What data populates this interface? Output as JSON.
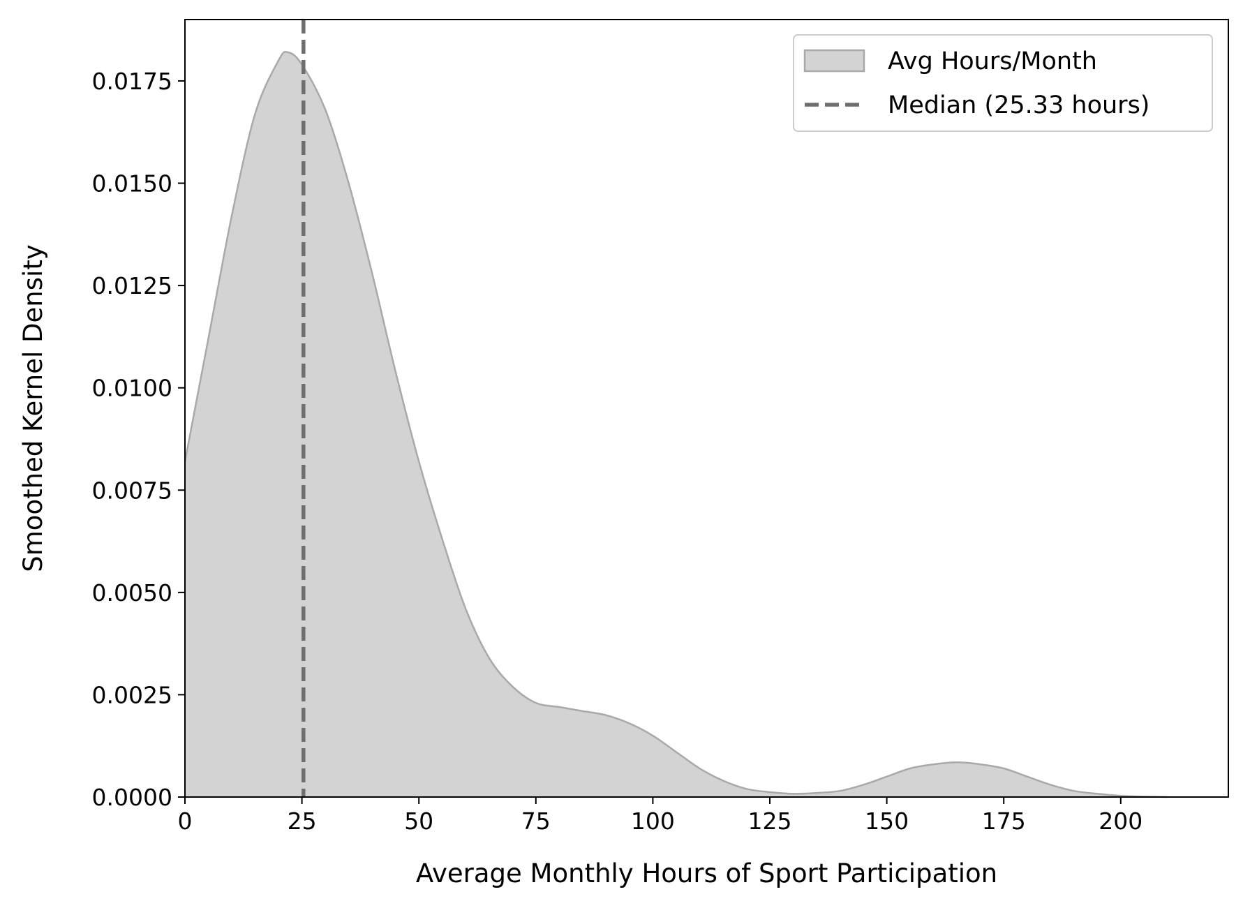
{
  "chart_data": {
    "type": "area",
    "xlabel": "Average Monthly Hours of Sport Participation",
    "ylabel": "Smoothed Kernel Density",
    "xlim": [
      0,
      223
    ],
    "ylim": [
      0,
      0.019
    ],
    "x_ticks": [
      "0",
      "25",
      "50",
      "75",
      "100",
      "125",
      "150",
      "175",
      "200"
    ],
    "y_ticks": [
      "0.0000",
      "0.0025",
      "0.0050",
      "0.0075",
      "0.0100",
      "0.0125",
      "0.0150",
      "0.0175"
    ],
    "legend_position": "upper-right",
    "series": [
      {
        "name": "Avg Hours/Month",
        "kind": "filled-density",
        "fill_color": "#d3d3d3",
        "line_color": "#a9a9a9",
        "x": [
          0,
          5,
          10,
          15,
          20,
          22,
          25,
          30,
          35,
          40,
          45,
          50,
          55,
          60,
          65,
          70,
          75,
          80,
          85,
          90,
          95,
          100,
          105,
          110,
          115,
          120,
          125,
          130,
          135,
          140,
          145,
          150,
          155,
          160,
          165,
          170,
          175,
          180,
          185,
          190,
          195,
          200,
          205,
          210
        ],
        "y": [
          0.0082,
          0.0112,
          0.0142,
          0.0167,
          0.018,
          0.0182,
          0.0179,
          0.0168,
          0.015,
          0.0128,
          0.0104,
          0.0082,
          0.0063,
          0.0046,
          0.0034,
          0.0027,
          0.0023,
          0.0022,
          0.0021,
          0.002,
          0.0018,
          0.0015,
          0.0011,
          0.0007,
          0.0004,
          0.0002,
          0.00012,
          8e-05,
          0.0001,
          0.00015,
          0.0003,
          0.0005,
          0.0007,
          0.0008,
          0.00085,
          0.0008,
          0.0007,
          0.0005,
          0.0003,
          0.00015,
          8e-05,
          3e-05,
          1e-05,
          0.0
        ]
      },
      {
        "name": "Median (25.33 hours)",
        "kind": "vertical-dashed-line",
        "x_value": 25.33,
        "line_color": "#6e6e6e"
      }
    ]
  }
}
